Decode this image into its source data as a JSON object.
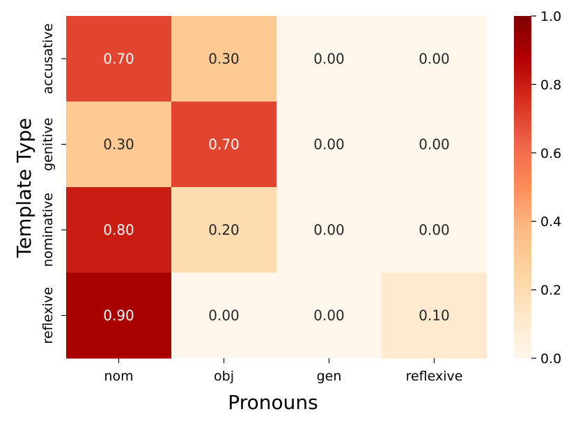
{
  "chart_data": {
    "type": "heatmap",
    "title": "",
    "xlabel": "Pronouns",
    "ylabel": "Template Type",
    "x_categories": [
      "nom",
      "obj",
      "gen",
      "reflexive"
    ],
    "y_categories": [
      "accusative",
      "genitive",
      "nominative",
      "reflexive"
    ],
    "values": [
      [
        0.7,
        0.3,
        0.0,
        0.0
      ],
      [
        0.3,
        0.7,
        0.0,
        0.0
      ],
      [
        0.8,
        0.2,
        0.0,
        0.0
      ],
      [
        0.9,
        0.0,
        0.0,
        0.1
      ]
    ],
    "value_format": "0.00",
    "colormap": "OrRd",
    "vmin": 0.0,
    "vmax": 1.0,
    "colorbar_ticks": [
      0.0,
      0.2,
      0.4,
      0.6,
      0.8,
      1.0
    ],
    "colorbar_tick_labels": [
      "0.0",
      "0.2",
      "0.4",
      "0.6",
      "0.8",
      "1.0"
    ],
    "grid": false
  }
}
